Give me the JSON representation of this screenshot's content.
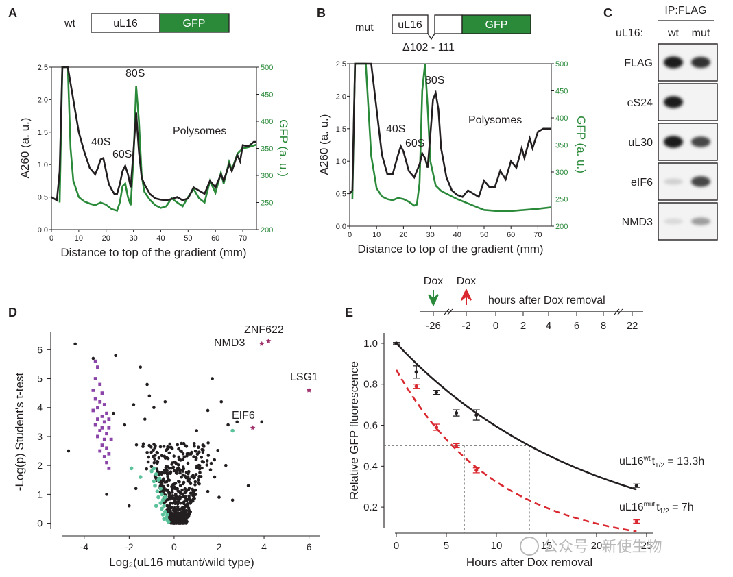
{
  "panels": {
    "A": "A",
    "B": "B",
    "C": "C",
    "D": "D",
    "E": "E"
  },
  "constructs": {
    "wt": {
      "label": "wt",
      "domain1": "uL16",
      "domain2": "GFP"
    },
    "mut": {
      "label": "mut",
      "domain1": "uL16",
      "domain2": "GFP",
      "deletion": "Δ102 - 111"
    }
  },
  "colors": {
    "green": "#2a8a3a",
    "black": "#231f20",
    "red": "#d9282f",
    "purple": "#8b45a8",
    "teal": "#5cc29c",
    "magenta": "#a0336e"
  },
  "profileA": {
    "chart_data": {
      "type": "line",
      "xlabel": "Distance to top of the gradient (mm)",
      "ylabel": "A260 (a. u.)",
      "y2label": "GFP (a. u.)",
      "xticks": [
        "0",
        "10",
        "20",
        "30",
        "40",
        "50",
        "60",
        "70"
      ],
      "yticks": [
        "0.0",
        "0.5",
        "1.0",
        "1.5",
        "2.0",
        "2.5"
      ],
      "y2ticks": [
        "200",
        "250",
        "300",
        "350",
        "400",
        "450",
        "500"
      ],
      "peaks": {
        "s40": "40S",
        "s60": "60S",
        "s80": "80S",
        "poly": "Polysomes"
      },
      "xlim": [
        0,
        75
      ],
      "ylim": [
        0,
        2.5
      ],
      "y2lim": [
        200,
        500
      ],
      "a260": [
        [
          0,
          0.5
        ],
        [
          2,
          0.45
        ],
        [
          3,
          0.9
        ],
        [
          4,
          2.5
        ],
        [
          6,
          2.5
        ],
        [
          8,
          2.0
        ],
        [
          10,
          1.5
        ],
        [
          12,
          1.2
        ],
        [
          14,
          0.95
        ],
        [
          16,
          0.85
        ],
        [
          17,
          0.95
        ],
        [
          18,
          1.08
        ],
        [
          19,
          1.1
        ],
        [
          20,
          0.9
        ],
        [
          21,
          0.7
        ],
        [
          22,
          0.62
        ],
        [
          23,
          0.55
        ],
        [
          24,
          0.55
        ],
        [
          25,
          0.7
        ],
        [
          26,
          0.9
        ],
        [
          27,
          0.98
        ],
        [
          28,
          0.85
        ],
        [
          29,
          0.65
        ],
        [
          30,
          1.2
        ],
        [
          31,
          1.8
        ],
        [
          32,
          1.2
        ],
        [
          33,
          0.8
        ],
        [
          34,
          0.7
        ],
        [
          36,
          0.55
        ],
        [
          38,
          0.48
        ],
        [
          40,
          0.46
        ],
        [
          42,
          0.45
        ],
        [
          44,
          0.47
        ],
        [
          46,
          0.5
        ],
        [
          48,
          0.45
        ],
        [
          50,
          0.48
        ],
        [
          52,
          0.65
        ],
        [
          54,
          0.6
        ],
        [
          56,
          0.55
        ],
        [
          58,
          0.75
        ],
        [
          60,
          0.65
        ],
        [
          62,
          0.85
        ],
        [
          63,
          0.75
        ],
        [
          65,
          1.0
        ],
        [
          66,
          0.9
        ],
        [
          68,
          1.15
        ],
        [
          69,
          1.05
        ],
        [
          70,
          1.3
        ],
        [
          72,
          1.28
        ],
        [
          74,
          1.35
        ],
        [
          75,
          1.35
        ]
      ],
      "gfp": [
        [
          3,
          250
        ],
        [
          4,
          500
        ],
        [
          6,
          500
        ],
        [
          7,
          350
        ],
        [
          8,
          290
        ],
        [
          10,
          260
        ],
        [
          12,
          252
        ],
        [
          14,
          248
        ],
        [
          16,
          245
        ],
        [
          18,
          250
        ],
        [
          20,
          246
        ],
        [
          22,
          238
        ],
        [
          24,
          235
        ],
        [
          25,
          250
        ],
        [
          26,
          280
        ],
        [
          27,
          285
        ],
        [
          28,
          260
        ],
        [
          29,
          245
        ],
        [
          30,
          330
        ],
        [
          31,
          465
        ],
        [
          32,
          400
        ],
        [
          33,
          300
        ],
        [
          34,
          270
        ],
        [
          36,
          255
        ],
        [
          38,
          245
        ],
        [
          40,
          240
        ],
        [
          42,
          243
        ],
        [
          44,
          258
        ],
        [
          46,
          250
        ],
        [
          48,
          243
        ],
        [
          50,
          260
        ],
        [
          52,
          275
        ],
        [
          54,
          258
        ],
        [
          56,
          250
        ],
        [
          58,
          290
        ],
        [
          60,
          268
        ],
        [
          62,
          305
        ],
        [
          63,
          285
        ],
        [
          65,
          325
        ],
        [
          66,
          310
        ],
        [
          68,
          340
        ],
        [
          70,
          350
        ],
        [
          72,
          352
        ],
        [
          75,
          357
        ]
      ]
    }
  },
  "profileB": {
    "chart_data": {
      "type": "line",
      "xlabel": "Distance to top of the gradient (mm)",
      "ylabel": "A260 (a. u.)",
      "y2label": "GFP (a. u.)",
      "xticks": [
        "0",
        "10",
        "20",
        "30",
        "40",
        "50",
        "60",
        "70"
      ],
      "yticks": [
        "0.0",
        "0.5",
        "1.0",
        "1.5",
        "2.0",
        "2.5"
      ],
      "y2ticks": [
        "200",
        "250",
        "300",
        "350",
        "400",
        "450",
        "500"
      ],
      "peaks": {
        "s40": "40S",
        "s60": "60S",
        "s80": "80S",
        "poly": "Polysomes"
      },
      "xlim": [
        0,
        75
      ],
      "ylim": [
        0,
        2.5
      ],
      "y2lim": [
        200,
        500
      ],
      "a260": [
        [
          0,
          0.5
        ],
        [
          1,
          0.55
        ],
        [
          2,
          2.5
        ],
        [
          4,
          2.5
        ],
        [
          6,
          2.5
        ],
        [
          8,
          2.5
        ],
        [
          10,
          1.8
        ],
        [
          12,
          1.1
        ],
        [
          14,
          0.8
        ],
        [
          16,
          0.8
        ],
        [
          18,
          1.1
        ],
        [
          19,
          1.23
        ],
        [
          20,
          1.15
        ],
        [
          22,
          0.85
        ],
        [
          24,
          0.75
        ],
        [
          26,
          0.95
        ],
        [
          27,
          1.12
        ],
        [
          28,
          1.05
        ],
        [
          29,
          0.9
        ],
        [
          30,
          1.4
        ],
        [
          31,
          1.95
        ],
        [
          32,
          2.05
        ],
        [
          33,
          1.8
        ],
        [
          34,
          1.2
        ],
        [
          36,
          0.75
        ],
        [
          38,
          0.55
        ],
        [
          40,
          0.48
        ],
        [
          42,
          0.45
        ],
        [
          44,
          0.55
        ],
        [
          46,
          0.5
        ],
        [
          48,
          0.45
        ],
        [
          50,
          0.7
        ],
        [
          52,
          0.6
        ],
        [
          54,
          0.6
        ],
        [
          56,
          0.85
        ],
        [
          58,
          0.72
        ],
        [
          60,
          1.0
        ],
        [
          62,
          0.9
        ],
        [
          64,
          1.2
        ],
        [
          65,
          1.05
        ],
        [
          67,
          1.35
        ],
        [
          68,
          1.2
        ],
        [
          70,
          1.45
        ],
        [
          72,
          1.5
        ],
        [
          74,
          1.5
        ],
        [
          75,
          1.5
        ]
      ],
      "gfp": [
        [
          1,
          250
        ],
        [
          2,
          500
        ],
        [
          4,
          500
        ],
        [
          6,
          500
        ],
        [
          8,
          330
        ],
        [
          10,
          270
        ],
        [
          12,
          255
        ],
        [
          14,
          250
        ],
        [
          16,
          248
        ],
        [
          18,
          252
        ],
        [
          20,
          250
        ],
        [
          22,
          245
        ],
        [
          24,
          238
        ],
        [
          25,
          240
        ],
        [
          26,
          280
        ],
        [
          27,
          450
        ],
        [
          28,
          500
        ],
        [
          29,
          420
        ],
        [
          30,
          320
        ],
        [
          32,
          275
        ],
        [
          34,
          265
        ],
        [
          36,
          260
        ],
        [
          40,
          250
        ],
        [
          45,
          240
        ],
        [
          50,
          230
        ],
        [
          55,
          228
        ],
        [
          60,
          228
        ],
        [
          65,
          230
        ],
        [
          70,
          232
        ],
        [
          75,
          235
        ]
      ]
    }
  },
  "blot": {
    "title": "IP:FLAG",
    "rowlabel": "uL16:",
    "lanes": [
      "wt",
      "mut"
    ],
    "bands": [
      {
        "label": "FLAG",
        "wt": 0.95,
        "mut": 0.85
      },
      {
        "label": "eS24",
        "wt": 0.95,
        "mut": 0.0
      },
      {
        "label": "uL30",
        "wt": 0.95,
        "mut": 0.75
      },
      {
        "label": "eIF6",
        "wt": 0.12,
        "mut": 0.75
      },
      {
        "label": "NMD3",
        "wt": 0.08,
        "mut": 0.35
      }
    ]
  },
  "volcano": {
    "chart_data": {
      "type": "scatter",
      "xlabel": "Log₂(uL16 mutant/wild type)",
      "ylabel": "-Log(p) Student's t-test",
      "xticks": [
        "-4",
        "-2",
        "0",
        "2",
        "4",
        "6"
      ],
      "yticks": [
        "0",
        "1",
        "2",
        "3",
        "4",
        "5",
        "6"
      ],
      "xlim": [
        -5,
        6.5
      ],
      "ylim": [
        -0.2,
        6.6
      ],
      "labels": {
        "znf622": "ZNF622",
        "nmd3": "NMD3",
        "lsg1": "LSG1",
        "eif6": "EIF6"
      },
      "highlighted": [
        [
          4.2,
          6.3
        ],
        [
          3.9,
          6.2
        ],
        [
          6.0,
          4.6
        ],
        [
          3.5,
          3.3
        ]
      ],
      "purple": [
        [
          -3.5,
          5.6
        ],
        [
          -3.4,
          5.4
        ],
        [
          -3.5,
          5.0
        ],
        [
          -3.3,
          4.8
        ],
        [
          -3.6,
          4.6
        ],
        [
          -3.2,
          4.5
        ],
        [
          -3.5,
          4.3
        ],
        [
          -3.3,
          4.2
        ],
        [
          -3.4,
          4.0
        ],
        [
          -3.1,
          4.1
        ],
        [
          -3.6,
          3.9
        ],
        [
          -3.0,
          3.8
        ],
        [
          -3.2,
          3.7
        ],
        [
          -3.4,
          3.6
        ],
        [
          -2.9,
          3.6
        ],
        [
          -3.1,
          3.5
        ],
        [
          -3.5,
          3.4
        ],
        [
          -3.2,
          3.3
        ],
        [
          -2.9,
          3.3
        ],
        [
          -3.3,
          3.2
        ],
        [
          -3.0,
          3.1
        ],
        [
          -3.4,
          3.0
        ],
        [
          -3.1,
          2.9
        ],
        [
          -2.8,
          2.9
        ],
        [
          -3.2,
          2.7
        ],
        [
          -3.0,
          2.6
        ],
        [
          -3.3,
          2.5
        ],
        [
          -2.9,
          2.4
        ],
        [
          -3.1,
          2.3
        ],
        [
          -3.0,
          2.1
        ],
        [
          -2.9,
          1.9
        ]
      ],
      "teal": [
        [
          -1.9,
          1.9
        ],
        [
          -1.5,
          1.6
        ],
        [
          -0.9,
          1.9
        ],
        [
          -0.8,
          1.7
        ],
        [
          -0.7,
          1.5
        ],
        [
          -0.85,
          1.3
        ],
        [
          -0.6,
          1.2
        ],
        [
          -0.75,
          1.1
        ],
        [
          -0.55,
          1.0
        ],
        [
          -0.7,
          0.9
        ],
        [
          -0.5,
          0.8
        ],
        [
          -0.6,
          0.7
        ],
        [
          -0.45,
          0.6
        ],
        [
          -0.55,
          0.5
        ],
        [
          -0.4,
          0.4
        ],
        [
          -0.5,
          0.3
        ],
        [
          -0.35,
          0.2
        ],
        [
          -0.3,
          0.1
        ],
        [
          -0.25,
          0.05
        ],
        [
          -0.65,
          1.55
        ],
        [
          -0.9,
          1.45
        ],
        [
          -0.4,
          0.9
        ],
        [
          -0.3,
          0.3
        ],
        [
          2.6,
          3.2
        ],
        [
          -1.0,
          1.8
        ],
        [
          -0.8,
          0.6
        ],
        [
          -0.45,
          0.15
        ]
      ],
      "outliers": [
        [
          -4.4,
          6.2
        ],
        [
          -3.6,
          5.7
        ],
        [
          -2.6,
          5.8
        ],
        [
          -1.5,
          5.4
        ],
        [
          -1.2,
          4.8
        ],
        [
          -1.1,
          4.4
        ],
        [
          -1.8,
          4.1
        ],
        [
          -1.3,
          3.6
        ],
        [
          -2.2,
          3.4
        ],
        [
          -2.7,
          3.8
        ],
        [
          -4.7,
          2.5
        ],
        [
          -3.0,
          1.0
        ],
        [
          -1.7,
          1.2
        ],
        [
          -2.0,
          0.6
        ],
        [
          1.7,
          5.0
        ],
        [
          2.1,
          4.2
        ],
        [
          1.5,
          3.9
        ],
        [
          2.4,
          3.4
        ],
        [
          2.8,
          3.5
        ],
        [
          3.9,
          3.5
        ],
        [
          3.3,
          1.3
        ],
        [
          2.3,
          2.0
        ],
        [
          1.8,
          1.6
        ],
        [
          1.5,
          1.1
        ],
        [
          2.0,
          0.9
        ],
        [
          2.6,
          0.8
        ],
        [
          1.3,
          2.7
        ],
        [
          1.0,
          3.2
        ],
        [
          -0.9,
          4.0
        ],
        [
          -0.4,
          4.2
        ]
      ]
    }
  },
  "decay": {
    "timeline": {
      "dox_green": "Dox",
      "dox_red": "Dox",
      "label": "hours after Dox removal",
      "ticks": [
        "-26",
        "-2",
        "0",
        "2",
        "4",
        "6",
        "8",
        "22"
      ]
    },
    "chart_data": {
      "type": "line",
      "xlabel": "Hours after Dox removal",
      "ylabel": "Relative GFP fluorescence",
      "xticks": [
        "0",
        "5",
        "10",
        "15",
        "20",
        "25"
      ],
      "yticks": [
        "0.2",
        "0.4",
        "0.6",
        "0.8",
        "1.0"
      ],
      "xlim": [
        -1,
        26
      ],
      "ylim": [
        0.1,
        1.05
      ],
      "series": [
        {
          "name": "wt",
          "color": "#231f20",
          "halflife_h": 13.3,
          "start": 1.0,
          "points": [
            [
              0,
              1.0,
              0.0
            ],
            [
              2,
              0.86,
              0.03
            ],
            [
              4,
              0.76,
              0.01
            ],
            [
              6,
              0.66,
              0.015
            ],
            [
              8,
              0.65,
              0.025
            ],
            [
              24,
              0.305,
              0.008
            ]
          ]
        },
        {
          "name": "mut",
          "color": "#d9282f",
          "halflife_h": 7,
          "start": 0.87,
          "points": [
            [
              2,
              0.79,
              0.01
            ],
            [
              4,
              0.59,
              0.015
            ],
            [
              6,
              0.5,
              0.01
            ],
            [
              8,
              0.38,
              0.012
            ],
            [
              24,
              0.13,
              0.008
            ]
          ]
        }
      ],
      "wt_label": {
        "base": "uL16",
        "sup": "wt",
        "t": "t",
        "sub": "1/2",
        "value": " = 13.3h"
      },
      "mut_label": {
        "base": "uL16",
        "sup": "mut",
        "t": "t",
        "sub": "1/2",
        "value": " = 7h"
      },
      "guide_y": 0.5,
      "guide_x": [
        6.8,
        13.3
      ]
    }
  },
  "watermark": "公众号 · 新使生物"
}
